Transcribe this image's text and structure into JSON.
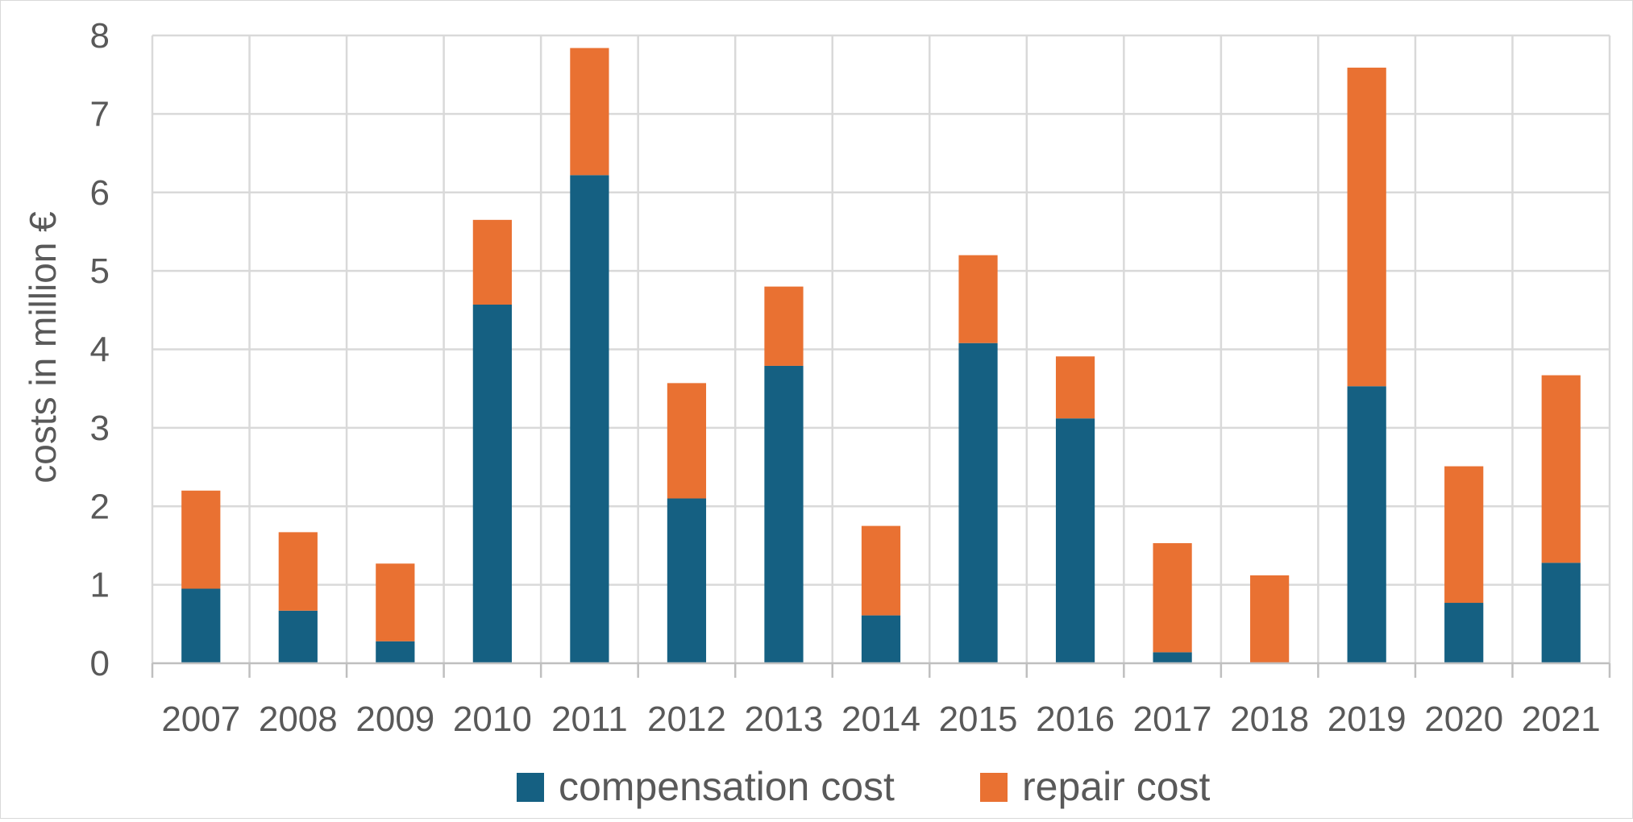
{
  "chart_data": {
    "type": "bar",
    "stacked": true,
    "title": "",
    "xlabel": "",
    "ylabel": "costs in million €",
    "ylim": [
      0,
      8
    ],
    "yticks": [
      "0",
      "1",
      "2",
      "3",
      "4",
      "5",
      "6",
      "7",
      "8"
    ],
    "grid": true,
    "legend_position": "bottom",
    "categories": [
      "2007",
      "2008",
      "2009",
      "2010",
      "2011",
      "2012",
      "2013",
      "2014",
      "2015",
      "2016",
      "2017",
      "2018",
      "2019",
      "2020",
      "2021"
    ],
    "series": [
      {
        "name": "compensation cost",
        "color": "#156082",
        "values": [
          0.95,
          0.67,
          0.28,
          4.57,
          6.22,
          2.1,
          3.79,
          0.61,
          4.08,
          3.12,
          0.14,
          0.0,
          3.53,
          0.77,
          1.28
        ]
      },
      {
        "name": "repair cost",
        "color": "#e97132",
        "values": [
          1.25,
          1.0,
          0.99,
          1.08,
          1.62,
          1.47,
          1.01,
          1.14,
          1.12,
          0.79,
          1.39,
          1.12,
          4.06,
          1.74,
          2.39
        ]
      }
    ]
  }
}
